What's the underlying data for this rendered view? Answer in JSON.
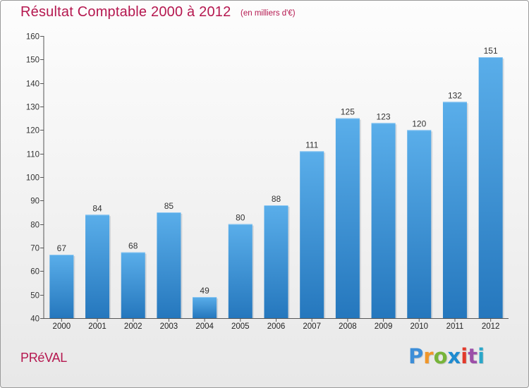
{
  "header": {
    "title": "Résultat Comptable 2000 à 2012",
    "subtitle": "(en milliers d'€)"
  },
  "footer": {
    "commune": "PRéVAL",
    "logo": {
      "letters": [
        "P",
        "r",
        "o",
        "x",
        "i",
        "t",
        "i"
      ],
      "colors": [
        "#3d8ed8",
        "#f0962a",
        "#77b43a",
        "#1e8bd0",
        "#e23a2b",
        "#9c4fa8",
        "#2aa7c9"
      ],
      "label": "Proxiti"
    }
  },
  "chart_data": {
    "type": "bar",
    "title": "Résultat Comptable 2000 à 2012",
    "subtitle": "(en milliers d'€)",
    "xlabel": "",
    "ylabel": "",
    "categories": [
      "2000",
      "2001",
      "2002",
      "2003",
      "2004",
      "2005",
      "2006",
      "2007",
      "2008",
      "2009",
      "2010",
      "2011",
      "2012"
    ],
    "values": [
      67,
      84,
      68,
      85,
      49,
      80,
      88,
      111,
      125,
      123,
      120,
      132,
      151
    ],
    "data_labels": [
      "67",
      "84",
      "68",
      "85",
      "49",
      "80",
      "88",
      "111",
      "125",
      "123",
      "120",
      "132",
      "151"
    ],
    "ylim": [
      40,
      160
    ],
    "yticks": [
      40,
      50,
      60,
      70,
      80,
      90,
      100,
      110,
      120,
      130,
      140,
      150,
      160
    ],
    "ytick_labels": [
      "40",
      "50",
      "60",
      "70",
      "80",
      "90",
      "100",
      "110",
      "120",
      "130",
      "140",
      "150",
      "160"
    ],
    "grid": false,
    "bar_color_top": "#5aaeea",
    "bar_color_bottom": "#2577bd",
    "axis_color": "#555555"
  }
}
